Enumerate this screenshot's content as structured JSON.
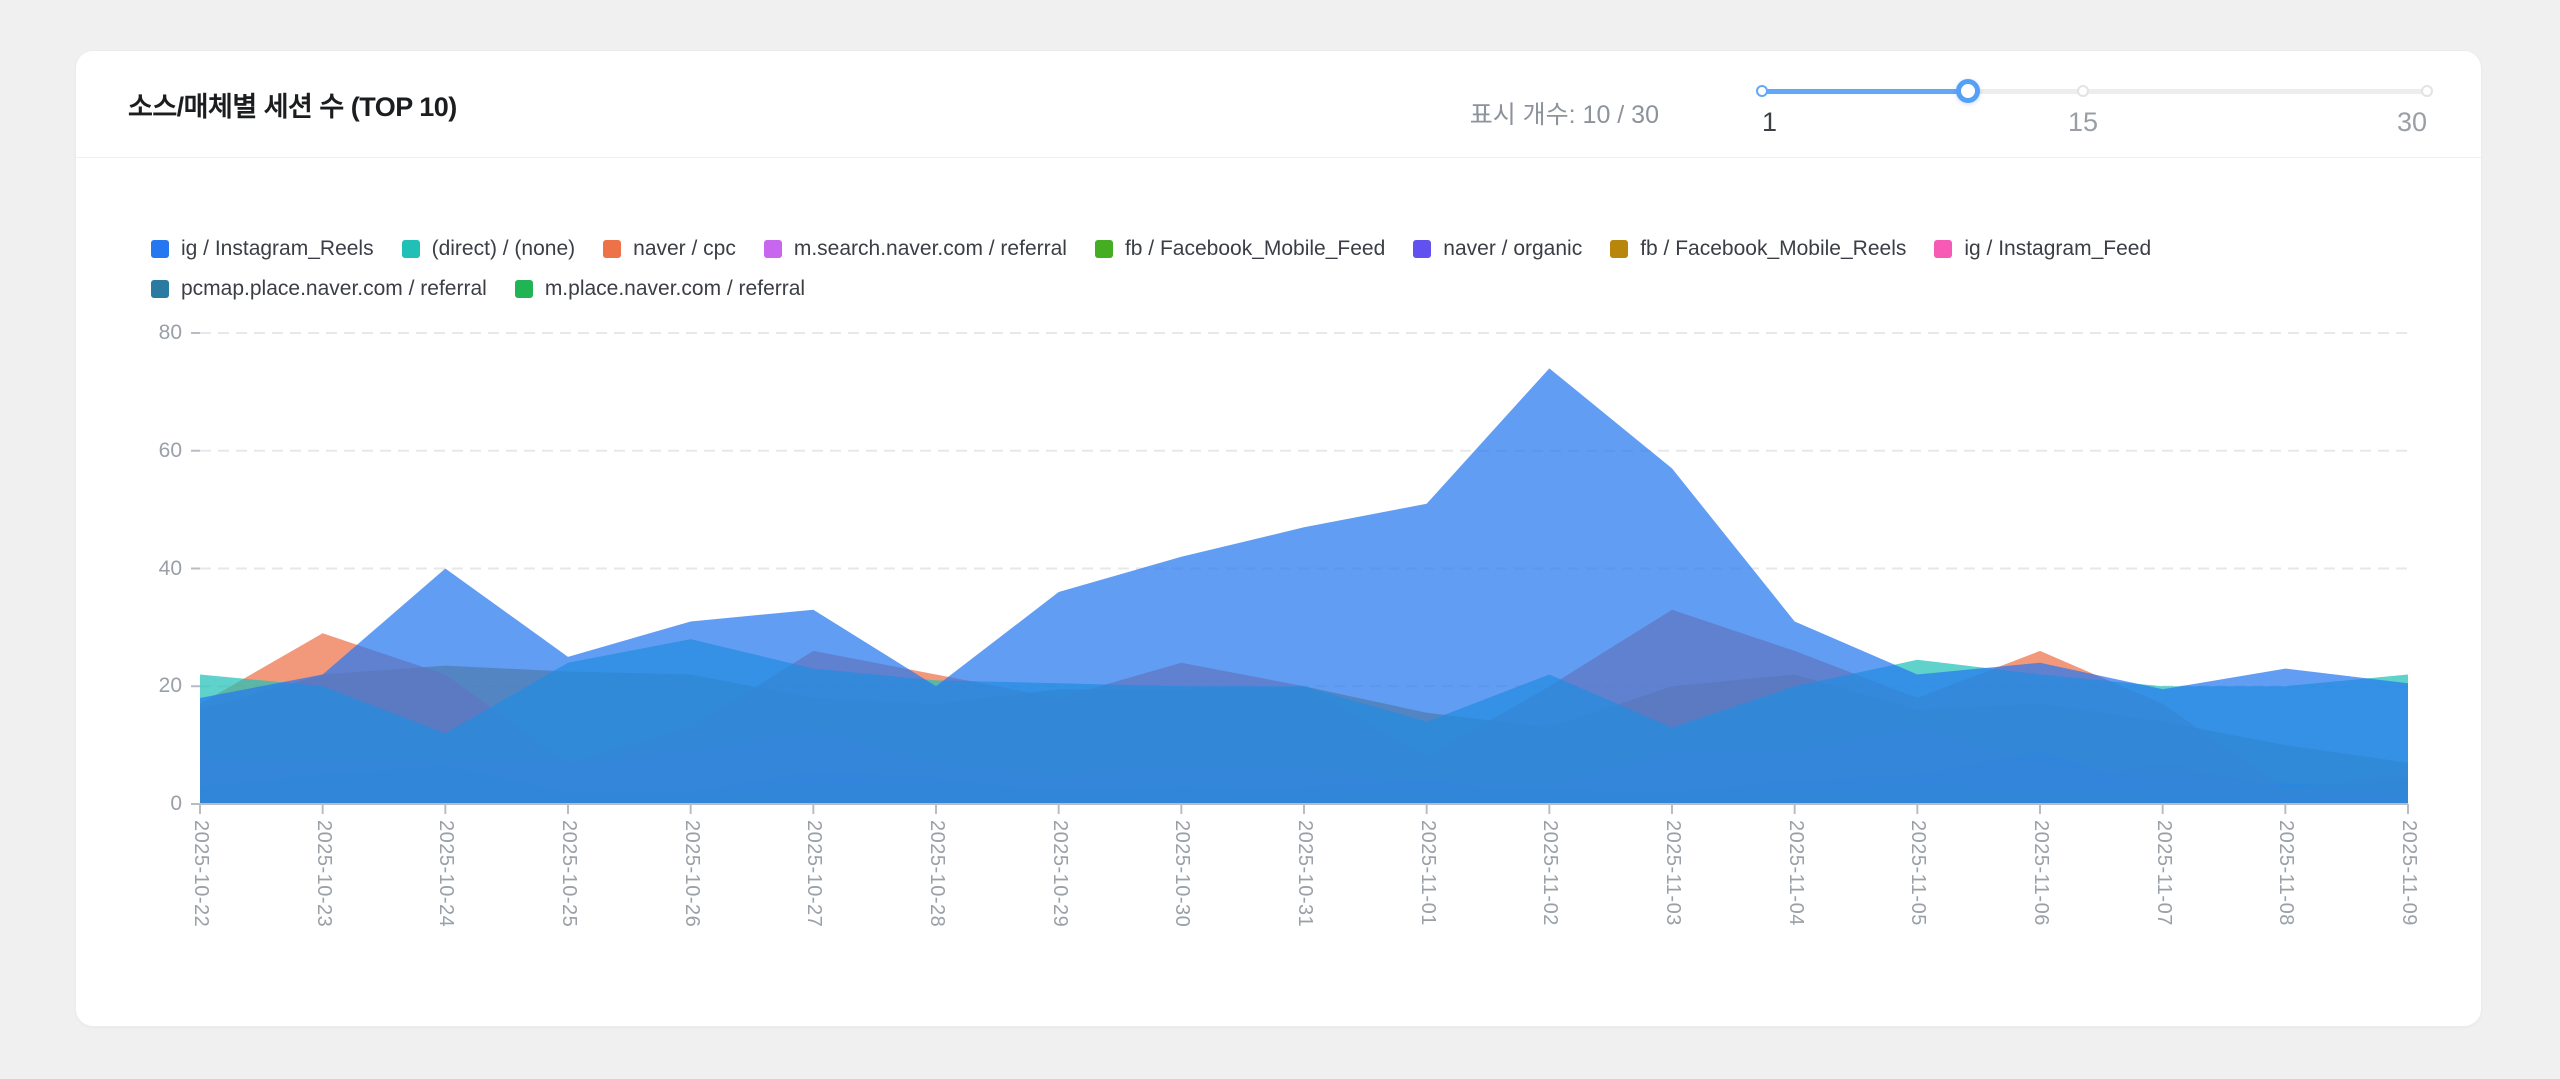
{
  "card": {
    "title": "소스/매체별 세션 수 (TOP 10)"
  },
  "display_count": {
    "label": "표시 개수: 10 / 30"
  },
  "slider": {
    "min": 1,
    "max": 30,
    "value": 10,
    "min_label": "1",
    "mid_label": "15",
    "max_label": "30",
    "mid_value": 15,
    "accent_color": "#62a8f8"
  },
  "chart_data": {
    "type": "area",
    "variant": "overlapping-unstacked",
    "fill_opacity": 0.72,
    "grid": "dashed-horizontal",
    "legend_position": "top",
    "xlabel": "",
    "ylabel": "",
    "ylim": [
      0,
      80
    ],
    "yticks": [
      0,
      20,
      40,
      60,
      80
    ],
    "x": [
      "2025-10-22",
      "2025-10-23",
      "2025-10-24",
      "2025-10-25",
      "2025-10-26",
      "2025-10-27",
      "2025-10-28",
      "2025-10-29",
      "2025-10-30",
      "2025-10-31",
      "2025-11-01",
      "2025-11-02",
      "2025-11-03",
      "2025-11-04",
      "2025-11-05",
      "2025-11-06",
      "2025-11-07",
      "2025-11-08",
      "2025-11-09"
    ],
    "series": [
      {
        "name": "ig / Instagram_Reels",
        "color": "#2577f0",
        "values": [
          18,
          22,
          40,
          25,
          31,
          33,
          20,
          36,
          42,
          47,
          51,
          74,
          57,
          31,
          22,
          24,
          19.5,
          23,
          20.5
        ]
      },
      {
        "name": "(direct) / (none)",
        "color": "#20c0b7",
        "values": [
          22,
          20,
          12,
          24,
          28,
          23,
          21,
          20.5,
          20,
          20,
          14,
          22,
          13,
          20,
          24.5,
          22,
          20,
          20,
          22
        ]
      },
      {
        "name": "naver / cpc",
        "color": "#ed7248",
        "values": [
          17,
          29,
          22,
          7,
          13,
          26,
          22,
          18,
          24,
          20,
          8,
          20,
          33,
          26,
          18,
          26,
          17,
          2.5,
          5
        ]
      },
      {
        "name": "m.search.naver.com / referral",
        "color": "#c966f0",
        "values": [
          8,
          7,
          7,
          7,
          9,
          12.5,
          7,
          5,
          6.5,
          6,
          4,
          3,
          9,
          9,
          13,
          7,
          5,
          2.5,
          1.5
        ]
      },
      {
        "name": "fb / Facebook_Mobile_Feed",
        "color": "#44ad21",
        "values": [
          3,
          5,
          6.5,
          2,
          2,
          3,
          3.5,
          2,
          3,
          2,
          2,
          2,
          2,
          2,
          3,
          2,
          2,
          3,
          4
        ]
      },
      {
        "name": "naver / organic",
        "color": "#6152f0",
        "values": [
          2,
          4,
          3,
          1,
          2,
          5.5,
          4.5,
          2,
          1,
          3,
          4,
          1.5,
          2,
          4,
          5,
          9,
          2.5,
          3.5,
          2.5
        ]
      },
      {
        "name": "fb / Facebook_Mobile_Reels",
        "color": "#b8860b",
        "values": [
          16,
          22,
          23.5,
          22.5,
          22,
          18,
          17,
          19.5,
          19.5,
          20,
          15.5,
          13,
          20,
          22,
          16,
          17,
          14,
          10,
          7
        ]
      },
      {
        "name": "ig / Instagram_Feed",
        "color": "#f75ab4",
        "values": [
          2.5,
          1,
          1,
          0.5,
          1,
          1.5,
          1,
          1,
          2,
          1,
          1,
          3,
          1,
          2,
          2,
          3,
          7,
          2.5,
          1.5
        ]
      },
      {
        "name": "pcmap.place.naver.com / referral",
        "color": "#2a7aa1",
        "values": [
          1,
          2.5,
          2.5,
          1.5,
          1,
          1,
          2,
          3,
          1,
          0.5,
          1,
          0.5,
          1,
          0.5,
          1,
          1,
          0.5,
          1,
          1
        ]
      },
      {
        "name": "m.place.naver.com / referral",
        "color": "#21b454",
        "values": [
          0.5,
          1,
          1,
          0.5,
          1,
          2,
          3,
          2,
          1,
          1,
          2,
          1,
          1,
          1,
          2.5,
          3,
          1,
          1.5,
          4.5
        ]
      }
    ],
    "legend_rows": [
      8,
      2
    ],
    "axis_color": "#b9bdc3",
    "gridline_color": "#e6e8ea"
  }
}
